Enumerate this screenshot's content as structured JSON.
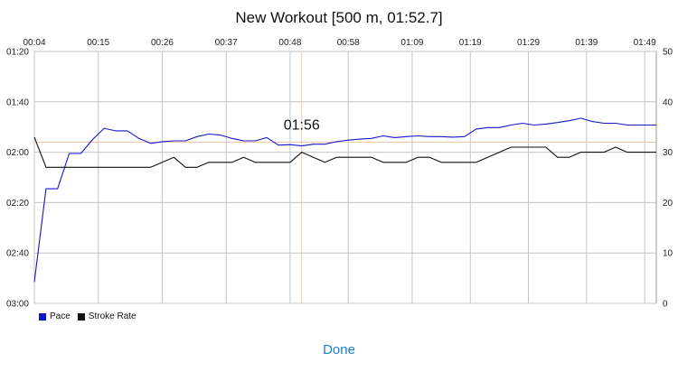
{
  "chart_data": {
    "type": "line",
    "title": "New Workout  [500 m, 01:52.7]",
    "x_ticks": [
      "00:04",
      "00:15",
      "00:26",
      "00:37",
      "00:48",
      "00:58",
      "01:09",
      "01:19",
      "01:29",
      "01:39",
      "01:49"
    ],
    "y_left_ticks": [
      "01:20",
      "01:40",
      "02:00",
      "02:20",
      "02:40",
      "03:00"
    ],
    "y_left_range_seconds": [
      80,
      180
    ],
    "y_left_inverted": true,
    "y_right_ticks": [
      "50",
      "40",
      "30",
      "20",
      "10",
      "0"
    ],
    "y_right_range": [
      0,
      50
    ],
    "x_range_seconds": [
      4,
      111
    ],
    "grid": true,
    "legend_position": "bottom-left",
    "annotation": {
      "label": "01:56",
      "x_seconds": 50,
      "y_seconds": 116
    },
    "series": [
      {
        "name": "Pace",
        "color": "#1515c8",
        "axis": "left",
        "x": [
          4,
          6,
          8,
          10,
          12,
          14,
          16,
          18,
          20,
          22,
          24,
          26,
          28,
          30,
          32,
          34,
          36,
          38,
          40,
          42,
          44,
          46,
          48,
          50,
          52,
          54,
          56,
          58,
          60,
          62,
          64,
          66,
          68,
          70,
          72,
          74,
          76,
          78,
          80,
          82,
          84,
          86,
          88,
          90,
          92,
          94,
          96,
          98,
          100,
          102,
          104,
          106,
          108,
          110,
          111
        ],
        "values": [
          171.5,
          134.5,
          134.5,
          120.5,
          120.5,
          115,
          110.5,
          111.5,
          111.5,
          114.5,
          116.5,
          115.8,
          115.5,
          115.5,
          113.8,
          112.8,
          113.2,
          114.5,
          115.5,
          115.5,
          114.2,
          117.2,
          117.0,
          117.5,
          116.8,
          116.8,
          115.8,
          115.2,
          114.8,
          114.5,
          113.5,
          114.2,
          113.8,
          113.5,
          113.8,
          113.8,
          114.0,
          113.8,
          110.8,
          110.2,
          110.2,
          109.2,
          108.5,
          109.2,
          108.8,
          108.2,
          107.5,
          106.5,
          107.8,
          108.5,
          108.5,
          109.2,
          109.2,
          109.2,
          109.2
        ]
      },
      {
        "name": "Stroke Rate",
        "color": "#111111",
        "axis": "right",
        "x": [
          4,
          6,
          8,
          10,
          12,
          14,
          16,
          18,
          20,
          22,
          24,
          26,
          28,
          30,
          32,
          34,
          36,
          38,
          40,
          42,
          44,
          46,
          48,
          50,
          52,
          54,
          56,
          58,
          60,
          62,
          64,
          66,
          68,
          70,
          72,
          74,
          76,
          78,
          80,
          82,
          84,
          86,
          88,
          90,
          92,
          94,
          96,
          98,
          100,
          102,
          104,
          106,
          108,
          110,
          111
        ],
        "values": [
          33,
          27,
          27,
          27,
          27,
          27,
          27,
          27,
          27,
          27,
          27,
          28,
          29,
          27,
          27,
          28,
          28,
          28,
          29,
          28,
          28,
          28,
          28,
          30,
          29,
          28,
          29,
          29,
          29,
          29,
          28,
          28,
          28,
          29,
          29,
          28,
          28,
          28,
          28,
          29,
          30,
          31,
          31,
          31,
          31,
          29,
          29,
          30,
          30,
          30,
          31,
          30,
          30,
          30,
          30
        ]
      }
    ]
  },
  "footer": {
    "done_label": "Done"
  }
}
